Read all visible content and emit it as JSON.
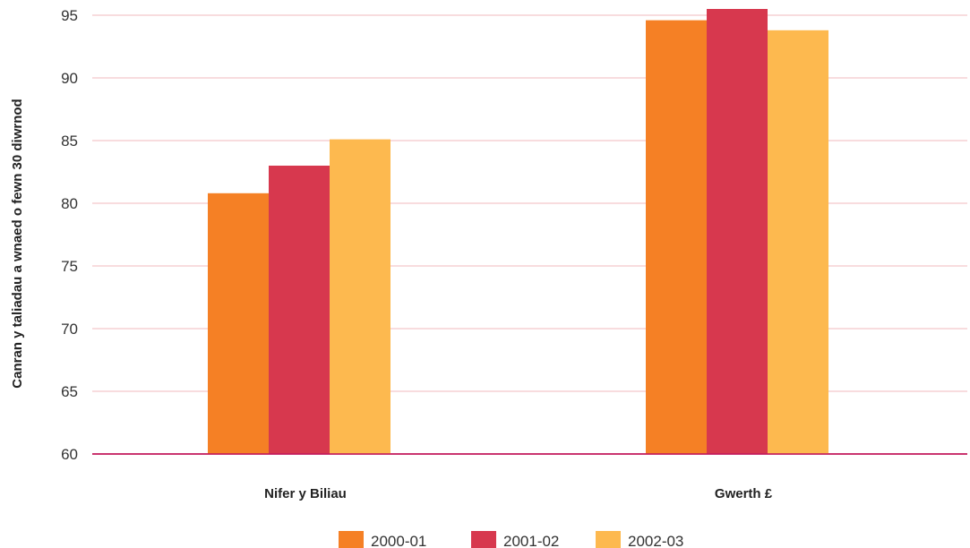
{
  "chart_data": {
    "type": "bar",
    "ylabel": "Canran y taliadau a wnaed o fewn 30 diwrnod",
    "xlabel": "",
    "ylim": [
      60,
      95
    ],
    "yticks": [
      60,
      65,
      70,
      75,
      80,
      85,
      90,
      95
    ],
    "grid": true,
    "legend_position": "bottom-center",
    "categories": [
      "Nifer y Biliau",
      "Gwerth £"
    ],
    "series": [
      {
        "name": "2000-01",
        "color": "#F58025",
        "values": [
          80.8,
          94.6
        ]
      },
      {
        "name": "2001-02",
        "color": "#D7384E",
        "values": [
          83.0,
          95.5
        ]
      },
      {
        "name": "2002-03",
        "color": "#FDB94F",
        "values": [
          85.1,
          93.8
        ]
      }
    ],
    "gridline_color": "#F2B8BE",
    "baseline_color": "#C2185B"
  }
}
